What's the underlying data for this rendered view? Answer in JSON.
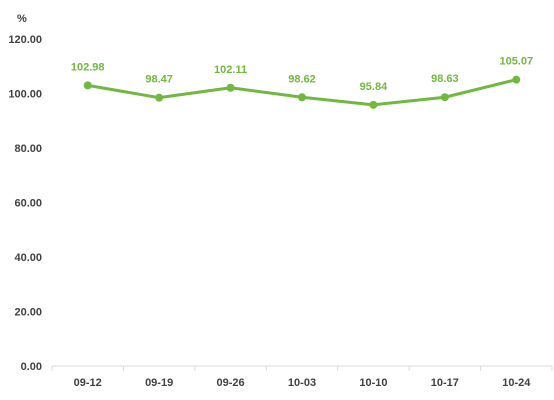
{
  "chart_data": {
    "type": "line",
    "ylabel": "%",
    "categories": [
      "09-12",
      "09-19",
      "09-26",
      "10-03",
      "10-10",
      "10-17",
      "10-24"
    ],
    "series": [
      {
        "values": [
          102.98,
          98.47,
          102.11,
          98.62,
          95.84,
          98.63,
          105.07
        ],
        "labels": [
          "102.98",
          "98.47",
          "102.11",
          "98.62",
          "95.84",
          "98.63",
          "105.07"
        ],
        "color": "#70b83f"
      }
    ],
    "ylim": [
      0,
      120
    ],
    "yticks": [
      0,
      20,
      40,
      60,
      80,
      100,
      120
    ],
    "ytick_labels": [
      "0.00",
      "20.00",
      "40.00",
      "60.00",
      "80.00",
      "100.00",
      "120.00"
    ],
    "grid": false,
    "legend": "none"
  },
  "colors": {
    "series": "#70b83f",
    "axis": "#d9d9d9",
    "text": "#404040"
  }
}
